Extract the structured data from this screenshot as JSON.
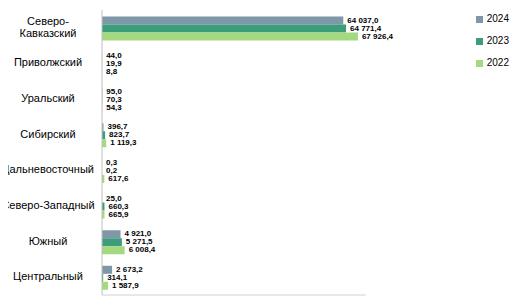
{
  "chart_data": {
    "type": "bar",
    "orientation": "horizontal",
    "categories": [
      "Северо-Кавказский",
      "Приволжский",
      "Уральский",
      "Сибирский",
      "Дальневосточный",
      "Северо-Западный",
      "Южный",
      "Центральный"
    ],
    "series": [
      {
        "name": "2024",
        "color": "#7f98a8",
        "values": [
          64037.0,
          44.0,
          95.0,
          396.7,
          0.3,
          25.0,
          4921.0,
          2673.2
        ],
        "value_labels": [
          "64 037,0",
          "44,0",
          "95,0",
          "396,7",
          "0,3",
          "25,0",
          "4 921,0",
          "2 673,2"
        ]
      },
      {
        "name": "2023",
        "color": "#3d9c7a",
        "values": [
          64771.4,
          19.9,
          70.3,
          823.7,
          0.2,
          660.3,
          5271.5,
          314.1
        ],
        "value_labels": [
          "64 771,4",
          "19,9",
          "70,3",
          "823,7",
          "0,2",
          "660,3",
          "5 271,5",
          "314,1"
        ]
      },
      {
        "name": "2022",
        "color": "#a4d97f",
        "values": [
          67926.4,
          8.8,
          54.3,
          1119.3,
          617.6,
          665.9,
          6008.4,
          1587.9
        ],
        "value_labels": [
          "67 926,4",
          "8,8",
          "54,3",
          "1 119,3",
          "617,6",
          "665,9",
          "6 008,4",
          "1 587,9"
        ]
      }
    ],
    "xlim": [
      0,
      70000
    ],
    "tick_labels": "y",
    "data_labels": true,
    "legend": "top-right",
    "grid": false
  }
}
